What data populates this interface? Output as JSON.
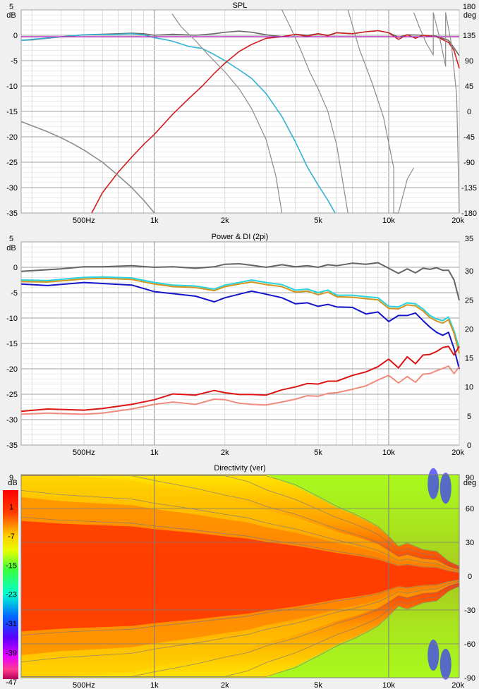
{
  "chart_data": [
    {
      "type": "line",
      "title": "SPL",
      "ylabel_left": "dB",
      "ylabel_right": "deg",
      "x_scale": "log",
      "xlim": [
        270,
        20000
      ],
      "ylim": [
        -35,
        5
      ],
      "ylim_right": [
        -180,
        180
      ],
      "x_tick_labels": [
        {
          "v": 500,
          "t": "500Hz"
        },
        {
          "v": 1000,
          "t": "1k"
        },
        {
          "v": 2000,
          "t": "2k"
        },
        {
          "v": 5000,
          "t": "5k"
        },
        {
          "v": 10000,
          "t": "10k"
        },
        {
          "v": 20000,
          "t": "20k"
        }
      ],
      "y_tick_labels": [
        "5",
        "0",
        "-5",
        "-10",
        "-15",
        "-20",
        "-25",
        "-30",
        "-35"
      ],
      "y_right_tick_labels": [
        "180",
        "135",
        "90",
        "45",
        "0",
        "-45",
        "-90",
        "-135",
        "-180"
      ],
      "grid": true,
      "series": [
        {
          "color": "#696969",
          "axis": "left",
          "x": [
            270,
            300,
            400,
            500,
            600,
            700,
            800,
            900,
            1000,
            1200,
            1500,
            1800,
            2000,
            2300,
            2600,
            3000,
            3500,
            4000,
            4500,
            5000,
            5500,
            6000,
            7000,
            8000,
            9000,
            10000,
            11000,
            12000,
            14000,
            16000,
            18000,
            19000,
            20000
          ],
          "y": [
            -1.0,
            -0.9,
            -0.3,
            0.1,
            0.2,
            0.3,
            0.4,
            0.3,
            0.0,
            0.2,
            0.0,
            0.3,
            0.6,
            0.8,
            0.6,
            0.1,
            -0.3,
            0.2,
            0.0,
            0.3,
            0.0,
            0.5,
            0.3,
            0.7,
            0.9,
            0.5,
            -0.4,
            0.1,
            0.0,
            -0.2,
            -1.0,
            -2.5,
            -4.0
          ]
        },
        {
          "color": "#32b4d2",
          "axis": "left",
          "x": [
            270,
            400,
            500,
            700,
            800,
            900,
            1000,
            1100,
            1200,
            1400,
            1600,
            1800,
            2000,
            2300,
            2600,
            3000,
            3500,
            4000,
            4500,
            5000,
            5500,
            5900
          ],
          "y": [
            -1.0,
            -0.3,
            0.1,
            0.2,
            0.3,
            0.1,
            -0.5,
            -0.8,
            -1.2,
            -2.2,
            -2.6,
            -3.8,
            -5.0,
            -6.8,
            -8.5,
            -11.5,
            -16.0,
            -21.0,
            -26.0,
            -29.5,
            -32.5,
            -35
          ]
        },
        {
          "color": "#d21e1e",
          "axis": "left",
          "x": [
            540,
            600,
            700,
            800,
            900,
            1000,
            1200,
            1400,
            1600,
            1800,
            2000,
            2300,
            2600,
            3000,
            3500,
            4000,
            4500,
            5000,
            5500,
            6000,
            7000,
            8000,
            9000,
            10000,
            11000,
            12000,
            13000,
            14000,
            16000,
            18000,
            19000,
            20000
          ],
          "y": [
            -35,
            -31.0,
            -27.0,
            -24.0,
            -21.5,
            -19.5,
            -15.5,
            -12.5,
            -10.0,
            -7.5,
            -5.5,
            -3.2,
            -1.8,
            -0.6,
            -0.3,
            0.2,
            -0.2,
            0.3,
            -0.1,
            0.5,
            0.3,
            0.7,
            0.9,
            0.5,
            -0.8,
            0.1,
            -0.6,
            0.0,
            -0.3,
            -1.4,
            -3.0,
            -6.5
          ]
        },
        {
          "color": "#b432b4",
          "axis": "left",
          "x": [
            270,
            20000
          ],
          "y": [
            -0.3,
            -0.3
          ]
        },
        {
          "color": "#8c8c8c",
          "axis": "left",
          "x": [
            270,
            300,
            350,
            400,
            450,
            500,
            600,
            700,
            800,
            900,
            1000
          ],
          "y": [
            -17.0,
            -17.8,
            -19.0,
            -20.2,
            -21.4,
            -22.6,
            -25.0,
            -27.6,
            -30.0,
            -32.5,
            -35
          ]
        },
        {
          "color": "#8c8c8c",
          "axis": "right",
          "x": [
            1190,
            1190,
            1300,
            1500,
            1700,
            2000,
            2300,
            2600,
            3000,
            3300,
            3500,
            3500,
            3800,
            4200,
            4600,
            5000,
            5500,
            6000,
            6700,
            6700,
            7500,
            8500,
            9500,
            10500,
            10500,
            11000,
            12000,
            12800,
            12800,
            13500,
            14500,
            15500,
            15500,
            16500,
            17500,
            17500,
            18500,
            19500,
            20000
          ],
          "y": [
            -180,
            173,
            150,
            125,
            100,
            70,
            40,
            5,
            -50,
            -115,
            -180,
            180,
            150,
            110,
            70,
            40,
            0,
            -60,
            -180,
            180,
            110,
            50,
            -10,
            -100,
            -180,
            -180,
            -120,
            -100,
            175,
            150,
            120,
            100,
            175,
            130,
            80,
            175,
            120,
            30,
            -180
          ]
        }
      ]
    },
    {
      "type": "line",
      "title": "Power & DI (2pi)",
      "ylabel_left": "dB",
      "x_scale": "log",
      "xlim": [
        270,
        20000
      ],
      "ylim": [
        -35,
        5
      ],
      "ylim_right": [
        0,
        35
      ],
      "x_tick_labels": [
        {
          "v": 500,
          "t": "500Hz"
        },
        {
          "v": 1000,
          "t": "1k"
        },
        {
          "v": 2000,
          "t": "2k"
        },
        {
          "v": 5000,
          "t": "5k"
        },
        {
          "v": 10000,
          "t": "10k"
        },
        {
          "v": 20000,
          "t": "20k"
        }
      ],
      "y_tick_labels": [
        "5",
        "0",
        "-5",
        "-10",
        "-15",
        "-20",
        "-25",
        "-30",
        "-35"
      ],
      "y_right_tick_labels": [
        "35",
        "30",
        "25",
        "20",
        "15",
        "10",
        "5",
        "0"
      ],
      "grid": true,
      "series": [
        {
          "color": "#646464",
          "axis": "left",
          "x": [
            270,
            400,
            500,
            600,
            800,
            1000,
            1200,
            1500,
            1800,
            2000,
            2300,
            2600,
            3000,
            3500,
            4000,
            4500,
            5000,
            5500,
            6000,
            7000,
            8000,
            9000,
            10000,
            11000,
            12000,
            13000,
            14000,
            15000,
            16000,
            17000,
            18000,
            19000,
            20000
          ],
          "y": [
            -0.8,
            -0.3,
            0.1,
            0.1,
            0.3,
            0.0,
            0.1,
            -0.2,
            0.1,
            0.6,
            0.7,
            0.4,
            0.0,
            0.5,
            0.1,
            0.3,
            0.0,
            0.5,
            0.3,
            0.8,
            0.6,
            0.9,
            -0.2,
            -1.2,
            -0.3,
            -1.1,
            -0.2,
            -0.4,
            -0.1,
            -0.6,
            -0.6,
            -2.5,
            -6.5
          ]
        },
        {
          "color": "#28d2dc",
          "axis": "left",
          "x": [
            270,
            350,
            500,
            600,
            800,
            1000,
            1200,
            1500,
            1800,
            2000,
            2300,
            2600,
            3000,
            3500,
            4000,
            4500,
            5000,
            5500,
            6000,
            7000,
            8000,
            9000,
            10000,
            11000,
            12000,
            13000,
            14000,
            15000,
            16000,
            17000,
            18000,
            19000,
            20000
          ],
          "y": [
            -2.5,
            -2.6,
            -2.0,
            -1.9,
            -2.1,
            -3.0,
            -3.5,
            -3.7,
            -4.3,
            -3.5,
            -3.0,
            -2.5,
            -3.0,
            -3.4,
            -4.5,
            -4.3,
            -5.0,
            -4.5,
            -5.5,
            -5.5,
            -5.8,
            -6.0,
            -7.7,
            -7.8,
            -7.0,
            -7.2,
            -8.2,
            -9.5,
            -10.2,
            -10.5,
            -9.8,
            -12.5,
            -16.0
          ]
        },
        {
          "color": "#d2961e",
          "axis": "left",
          "x": [
            270,
            350,
            500,
            600,
            800,
            1000,
            1200,
            1500,
            1800,
            2000,
            2300,
            2600,
            3000,
            3500,
            4000,
            4500,
            5000,
            5500,
            6000,
            7000,
            8000,
            9000,
            10000,
            11000,
            12000,
            13000,
            14000,
            15000,
            16000,
            17000,
            18000,
            19000,
            20000
          ],
          "y": [
            -2.8,
            -2.9,
            -2.3,
            -2.2,
            -2.4,
            -3.3,
            -3.8,
            -4.0,
            -4.6,
            -3.8,
            -3.3,
            -2.9,
            -3.4,
            -3.8,
            -4.9,
            -4.7,
            -5.4,
            -4.9,
            -5.8,
            -5.9,
            -6.2,
            -6.4,
            -8.1,
            -8.2,
            -7.4,
            -7.6,
            -8.6,
            -9.9,
            -10.6,
            -11.0,
            -10.3,
            -13.0,
            -17.0
          ]
        },
        {
          "color": "#1414c8",
          "axis": "left",
          "x": [
            270,
            350,
            500,
            600,
            800,
            1000,
            1200,
            1500,
            1800,
            2000,
            2300,
            2600,
            3000,
            3500,
            4000,
            4500,
            5000,
            5500,
            6000,
            7000,
            8000,
            9000,
            10000,
            11000,
            12000,
            13000,
            14000,
            15000,
            16000,
            17000,
            18000,
            19000,
            20000
          ],
          "y": [
            -3.3,
            -3.6,
            -3.0,
            -3.2,
            -3.5,
            -4.8,
            -5.2,
            -5.7,
            -6.8,
            -6.0,
            -5.3,
            -4.7,
            -5.3,
            -6.0,
            -7.2,
            -7.0,
            -7.7,
            -7.3,
            -7.8,
            -7.9,
            -9.2,
            -8.8,
            -10.7,
            -9.5,
            -9.5,
            -9.0,
            -10.5,
            -11.8,
            -12.8,
            -13.4,
            -12.8,
            -16.0,
            -20.0
          ]
        },
        {
          "color": "#dc1414",
          "axis": "right",
          "x": [
            270,
            350,
            500,
            600,
            800,
            1000,
            1200,
            1500,
            1800,
            2000,
            2300,
            2600,
            3000,
            3500,
            4000,
            4500,
            5000,
            5500,
            6000,
            7000,
            8000,
            9000,
            10000,
            11000,
            12000,
            13000,
            14000,
            15000,
            16000,
            17000,
            18000,
            19000,
            20000
          ],
          "y": [
            5.8,
            6.2,
            6.0,
            6.3,
            7.0,
            7.8,
            8.8,
            8.6,
            9.4,
            9.0,
            8.7,
            8.7,
            8.6,
            9.5,
            10.0,
            10.6,
            10.5,
            11.0,
            11.0,
            12.0,
            12.6,
            13.5,
            14.8,
            13.3,
            15.2,
            14.0,
            15.5,
            15.6,
            16.1,
            16.8,
            17.0,
            15.5,
            17.0
          ]
        },
        {
          "color": "#f08c7d",
          "axis": "right",
          "x": [
            270,
            350,
            500,
            600,
            800,
            1000,
            1200,
            1500,
            1800,
            2000,
            2300,
            2600,
            3000,
            3500,
            4000,
            4500,
            5000,
            5500,
            6000,
            7000,
            8000,
            9000,
            10000,
            11000,
            12000,
            13000,
            14000,
            15000,
            16000,
            17000,
            18000,
            19000,
            20000
          ],
          "y": [
            5.3,
            5.5,
            5.3,
            5.5,
            6.2,
            7.0,
            7.4,
            7.0,
            7.9,
            7.8,
            7.2,
            7.0,
            6.9,
            7.4,
            7.9,
            8.5,
            8.4,
            8.9,
            9.0,
            9.6,
            10.2,
            11.2,
            12.0,
            10.7,
            11.8,
            10.8,
            12.2,
            12.3,
            12.8,
            13.2,
            13.6,
            12.3,
            13.5
          ]
        }
      ]
    },
    {
      "type": "heatmap",
      "title": "Directivity (ver)",
      "ylabel_left": "dB",
      "ylabel_right": "deg",
      "x_scale": "log",
      "xlim": [
        270,
        20000
      ],
      "ylim": [
        -90,
        90
      ],
      "x_tick_labels": [
        {
          "v": 500,
          "t": "500Hz"
        },
        {
          "v": 1000,
          "t": "1k"
        },
        {
          "v": 2000,
          "t": "2k"
        },
        {
          "v": 5000,
          "t": "5k"
        },
        {
          "v": 10000,
          "t": "10k"
        },
        {
          "v": 20000,
          "t": "20k"
        }
      ],
      "colorbar_tick_labels": [
        "9",
        "1",
        "-7",
        "-15",
        "-23",
        "-31",
        "-39",
        "-47"
      ],
      "colorbar_unit": "dB",
      "y_right_tick_labels": [
        "90",
        "60",
        "30",
        "0",
        "-30",
        "-60",
        "-90"
      ],
      "colorbar_range": [
        -47,
        9
      ],
      "beamwidth_6dB_deg": {
        "x": [
          270,
          400,
          600,
          800,
          1000,
          1500,
          2000,
          2500,
          3000,
          4000,
          5000,
          6000,
          7000,
          8000,
          9000,
          10000,
          11000,
          12000,
          14000,
          16000,
          18000,
          20000
        ],
        "y": [
          100,
          95,
          92,
          90,
          85,
          78,
          72,
          68,
          62,
          55,
          48,
          42,
          38,
          34,
          30,
          24,
          18,
          20,
          16,
          15,
          9,
          6
        ]
      },
      "minimum_level_db": -47
    }
  ]
}
